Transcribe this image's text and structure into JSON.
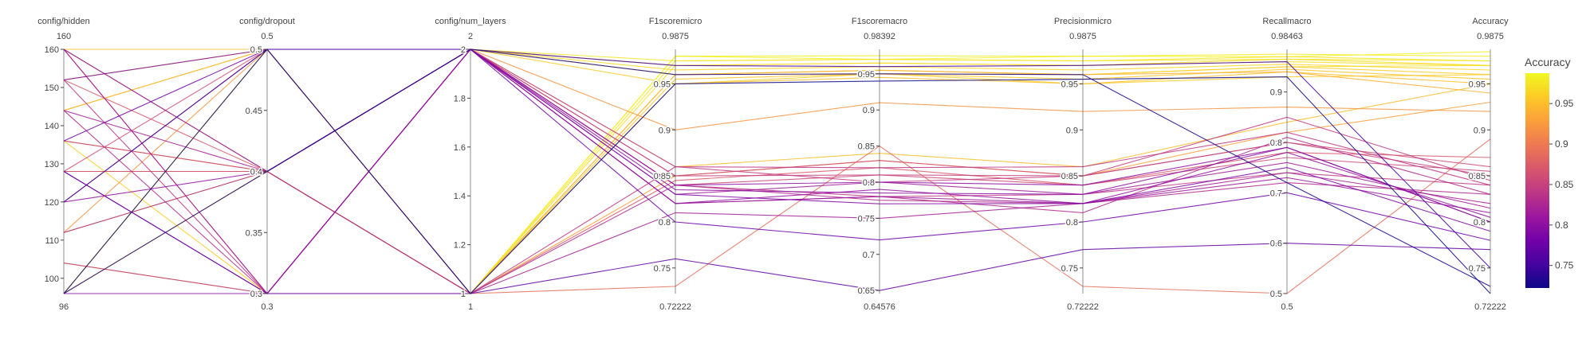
{
  "chart_data": {
    "type": "parallel_coordinates",
    "title": "",
    "colorscale": [
      "#0d0887",
      "#46039f",
      "#7201a8",
      "#9c179e",
      "#bd3786",
      "#d8576b",
      "#ed7953",
      "#fb9f3a",
      "#fdca26",
      "#f0f921"
    ],
    "color_by": "Accuracy",
    "colorbar": {
      "title": "Accuracy",
      "range": [
        0.72222,
        0.9875
      ],
      "ticks": [
        0.75,
        0.8,
        0.85,
        0.9,
        0.95
      ],
      "tick_labels": [
        "0.75",
        "0.8",
        "0.85",
        "0.9",
        "0.95"
      ]
    },
    "dimensions": [
      {
        "label": "config/hidden",
        "range": [
          96,
          160
        ],
        "min_label": "96",
        "max_label": "160",
        "ticks": [
          100,
          110,
          120,
          130,
          140,
          150,
          160
        ],
        "tick_labels": [
          "100",
          "110",
          "120",
          "130",
          "140",
          "150",
          "160"
        ]
      },
      {
        "label": "config/dropout",
        "range": [
          0.3,
          0.5
        ],
        "min_label": "0.3",
        "max_label": "0.5",
        "ticks": [
          0.3,
          0.35,
          0.4,
          0.45,
          0.5
        ],
        "tick_labels": [
          "0.3",
          "0.35",
          "0.4",
          "0.45",
          "0.5"
        ]
      },
      {
        "label": "config/num_layers",
        "range": [
          1,
          2
        ],
        "min_label": "1",
        "max_label": "2",
        "ticks": [
          1,
          1.2,
          1.4,
          1.6,
          1.8,
          2
        ],
        "tick_labels": [
          "1",
          "1.2",
          "1.4",
          "1.6",
          "1.8",
          "2"
        ]
      },
      {
        "label": "F1scoremicro",
        "range": [
          0.72222,
          0.9875
        ],
        "min_label": "0.72222",
        "max_label": "0.9875",
        "ticks": [
          0.75,
          0.8,
          0.85,
          0.9,
          0.95
        ],
        "tick_labels": [
          "0.75",
          "0.8",
          "0.85",
          "0.9",
          "0.95"
        ]
      },
      {
        "label": "F1scoremacro",
        "range": [
          0.64576,
          0.98392
        ],
        "min_label": "0.64576",
        "max_label": "0.98392",
        "ticks": [
          0.65,
          0.7,
          0.75,
          0.8,
          0.85,
          0.9,
          0.95
        ],
        "tick_labels": [
          "0.65",
          "0.7",
          "0.75",
          "0.8",
          "0.85",
          "0.9",
          "0.95"
        ]
      },
      {
        "label": "Precisionmicro",
        "range": [
          0.72222,
          0.9875
        ],
        "min_label": "0.72222",
        "max_label": "0.9875",
        "ticks": [
          0.75,
          0.8,
          0.85,
          0.9,
          0.95
        ],
        "tick_labels": [
          "0.75",
          "0.8",
          "0.85",
          "0.9",
          "0.95"
        ]
      },
      {
        "label": "Recallmacro",
        "range": [
          0.5,
          0.98463
        ],
        "min_label": "0.5",
        "max_label": "0.98463",
        "ticks": [
          0.5,
          0.6,
          0.7,
          0.8,
          0.9
        ],
        "tick_labels": [
          "0.5",
          "0.6",
          "0.7",
          "0.8",
          "0.9"
        ]
      },
      {
        "label": "Accuracy",
        "range": [
          0.72222,
          0.9875
        ],
        "min_label": "0.72222",
        "max_label": "0.9875",
        "ticks": [
          0.75,
          0.8,
          0.85,
          0.9,
          0.95
        ],
        "tick_labels": [
          "0.75",
          "0.8",
          "0.85",
          "0.9",
          "0.95"
        ]
      }
    ],
    "rows": [
      [
        96,
        0.5,
        1,
        0.98,
        0.975,
        0.98,
        0.975,
        0.98
      ],
      [
        96,
        0.5,
        1,
        0.975,
        0.97,
        0.975,
        0.97,
        0.975
      ],
      [
        104,
        0.3,
        1,
        0.97,
        0.965,
        0.97,
        0.965,
        0.97
      ],
      [
        112,
        0.4,
        1,
        0.96,
        0.955,
        0.96,
        0.95,
        0.96
      ],
      [
        136,
        0.4,
        1,
        0.955,
        0.95,
        0.955,
        0.945,
        0.955
      ],
      [
        144,
        0.5,
        2,
        0.97,
        0.965,
        0.97,
        0.96,
        0.97
      ],
      [
        152,
        0.5,
        2,
        0.975,
        0.97,
        0.975,
        0.965,
        0.975
      ],
      [
        160,
        0.5,
        1,
        0.95,
        0.945,
        0.95,
        0.94,
        0.95
      ],
      [
        128,
        0.4,
        2,
        0.965,
        0.96,
        0.965,
        0.955,
        0.965
      ],
      [
        96,
        0.4,
        1,
        0.98,
        0.97,
        0.98,
        0.97,
        0.985
      ],
      [
        112,
        0.5,
        2,
        0.9,
        0.91,
        0.92,
        0.87,
        0.92
      ],
      [
        96,
        0.4,
        2,
        0.86,
        0.84,
        0.86,
        0.84,
        0.95
      ],
      [
        160,
        0.4,
        1,
        0.85,
        0.83,
        0.85,
        0.82,
        0.93
      ],
      [
        144,
        0.5,
        1,
        0.96,
        0.955,
        0.96,
        0.94,
        0.94
      ],
      [
        136,
        0.3,
        2,
        0.95,
        0.95,
        0.95,
        0.93,
        0.96
      ],
      [
        96,
        0.5,
        2,
        0.96,
        0.95,
        0.96,
        0.95,
        0.97
      ],
      [
        160,
        0.3,
        1,
        0.73,
        0.85,
        0.73,
        0.5,
        0.89
      ],
      [
        152,
        0.4,
        1,
        0.845,
        0.82,
        0.84,
        0.78,
        0.87
      ],
      [
        128,
        0.4,
        2,
        0.84,
        0.81,
        0.84,
        0.77,
        0.855
      ],
      [
        128,
        0.5,
        2,
        0.85,
        0.83,
        0.85,
        0.8,
        0.86
      ],
      [
        120,
        0.5,
        1,
        0.86,
        0.8,
        0.85,
        0.85,
        0.845
      ],
      [
        104,
        0.3,
        2,
        0.84,
        0.78,
        0.83,
        0.74,
        0.84
      ],
      [
        144,
        0.3,
        1,
        0.84,
        0.775,
        0.82,
        0.72,
        0.83
      ],
      [
        144,
        0.4,
        1,
        0.81,
        0.75,
        0.82,
        0.74,
        0.82
      ],
      [
        128,
        0.3,
        2,
        0.83,
        0.8,
        0.83,
        0.76,
        0.815
      ],
      [
        160,
        0.3,
        2,
        0.82,
        0.78,
        0.82,
        0.73,
        0.81
      ],
      [
        120,
        0.4,
        2,
        0.82,
        0.79,
        0.82,
        0.78,
        0.805
      ],
      [
        96,
        0.3,
        2,
        0.84,
        0.8,
        0.84,
        0.79,
        0.8
      ],
      [
        152,
        0.5,
        2,
        0.83,
        0.77,
        0.82,
        0.75,
        0.79
      ],
      [
        136,
        0.5,
        2,
        0.8,
        0.72,
        0.8,
        0.7,
        0.78
      ],
      [
        128,
        0.3,
        1,
        0.76,
        0.65,
        0.77,
        0.6,
        0.77
      ],
      [
        120,
        0.5,
        2,
        0.97,
        0.96,
        0.97,
        0.96,
        0.75
      ],
      [
        96,
        0.4,
        2,
        0.96,
        0.95,
        0.96,
        0.72,
        0.73
      ],
      [
        96,
        0.5,
        1,
        0.95,
        0.94,
        0.955,
        0.93,
        0.72222
      ],
      [
        112,
        0.4,
        2,
        0.82,
        0.78,
        0.81,
        0.81,
        0.83
      ],
      [
        152,
        0.3,
        2,
        0.86,
        0.82,
        0.86,
        0.82,
        0.84
      ],
      [
        136,
        0.4,
        2,
        0.85,
        0.81,
        0.85,
        0.8,
        0.85
      ],
      [
        160,
        0.4,
        2,
        0.835,
        0.785,
        0.83,
        0.79,
        0.8
      ]
    ]
  }
}
